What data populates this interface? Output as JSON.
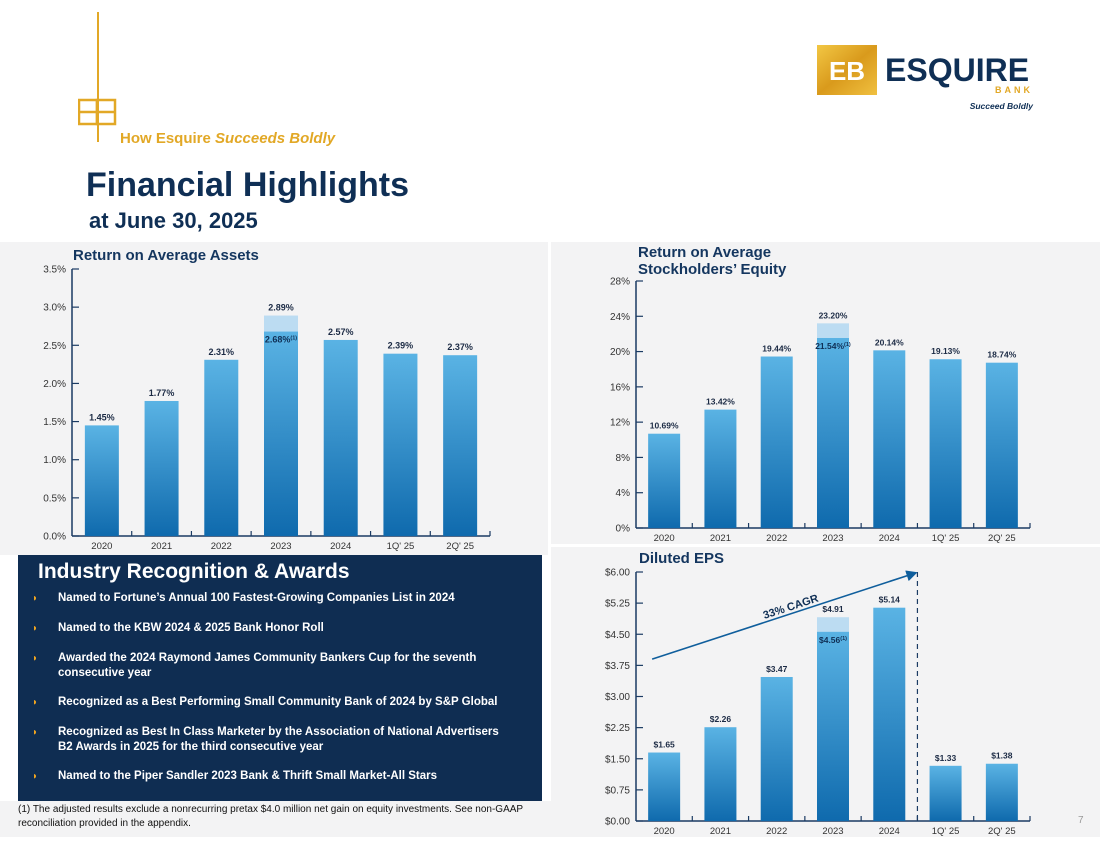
{
  "header": {
    "tagline_prefix": "How Esquire",
    "tagline_em": "Succeeds Boldly",
    "title": "Financial Highlights",
    "subtitle": "at June 30, 2025"
  },
  "logo": {
    "mark": "EB",
    "name": "ESQUIRE",
    "bank": "BANK",
    "slogan": "Succeed Boldly",
    "colors": {
      "gold": "#e2a826",
      "navy": "#0f2f55"
    }
  },
  "awards": {
    "title": "Industry Recognition & Awards",
    "items": [
      {
        "lines": [
          "Named to Fortune’s Annual 100 Fastest-Growing Companies List in 2024"
        ]
      },
      {
        "lines": [
          "Named to the KBW 2024 & 2025 Bank Honor Roll"
        ]
      },
      {
        "lines": [
          "Awarded the 2024 Raymond James Community Bankers Cup for the seventh",
          "consecutive year"
        ]
      },
      {
        "lines": [
          "Recognized as a Best Performing Small Community Bank of 2024 by S&P Global"
        ]
      },
      {
        "lines": [
          "Recognized as Best In Class Marketer by the Association of National Advertisers",
          "B2 Awards in 2025 for the third consecutive year"
        ]
      },
      {
        "lines": [
          "Named to the Piper Sandler 2023 Bank & Thrift Small Market-All Stars"
        ]
      }
    ]
  },
  "footnote": "(1) The adjusted results exclude a nonrecurring pretax $4.0 million net gain on equity investments. See non-GAAP reconciliation provided in the appendix.",
  "page_number": "7",
  "chart_data": [
    {
      "type": "bar",
      "title": "Return on Average Assets",
      "categories": [
        "2020",
        "2021",
        "2022",
        "2023",
        "2024",
        "1Q' 25",
        "2Q' 25"
      ],
      "values": [
        1.45,
        1.77,
        2.31,
        2.89,
        2.57,
        2.39,
        2.37
      ],
      "value_labels": [
        "1.45%",
        "1.77%",
        "2.31%",
        "2.89%",
        "2.57%",
        "2.39%",
        "2.37%"
      ],
      "adjusted": {
        "category": "2023",
        "value": 2.68,
        "label": "2.68%",
        "footnote_marker": "(1)"
      },
      "ylim": [
        0,
        3.5
      ],
      "yticks": [
        0,
        0.5,
        1.0,
        1.5,
        2.0,
        2.5,
        3.0,
        3.5
      ],
      "ytick_labels": [
        "0.0%",
        "0.5%",
        "1.0%",
        "1.5%",
        "2.0%",
        "2.5%",
        "3.0%",
        "3.5%"
      ],
      "grid": false
    },
    {
      "type": "bar",
      "title": "Return on Average Stockholders’ Equity",
      "categories": [
        "2020",
        "2021",
        "2022",
        "2023",
        "2024",
        "1Q' 25",
        "2Q' 25"
      ],
      "values": [
        10.69,
        13.42,
        19.44,
        23.2,
        20.14,
        19.13,
        18.74
      ],
      "value_labels": [
        "10.69%",
        "13.42%",
        "19.44%",
        "23.20%",
        "20.14%",
        "19.13%",
        "18.74%"
      ],
      "adjusted": {
        "category": "2023",
        "value": 21.54,
        "label": "21.54%",
        "footnote_marker": "(1)"
      },
      "ylim": [
        0,
        28
      ],
      "yticks": [
        0,
        4,
        8,
        12,
        16,
        20,
        24,
        28
      ],
      "ytick_labels": [
        "0%",
        "4%",
        "8%",
        "12%",
        "16%",
        "20%",
        "24%",
        "28%"
      ],
      "grid": false
    },
    {
      "type": "bar",
      "title": "Diluted EPS",
      "categories": [
        "2020",
        "2021",
        "2022",
        "2023",
        "2024",
        "1Q' 25",
        "2Q' 25"
      ],
      "values": [
        1.65,
        2.26,
        3.47,
        4.91,
        5.14,
        1.33,
        1.38
      ],
      "value_labels": [
        "$1.65",
        "$2.26",
        "$3.47",
        "$4.91",
        "$5.14",
        "$1.33",
        "$1.38"
      ],
      "adjusted": {
        "category": "2023",
        "value": 4.56,
        "label": "$4.56",
        "footnote_marker": "(1)"
      },
      "ylim": [
        0,
        6
      ],
      "yticks": [
        0,
        0.75,
        1.5,
        2.25,
        3.0,
        3.75,
        4.5,
        5.25,
        6.0
      ],
      "ytick_labels": [
        "$0.00",
        "$0.75",
        "$1.50",
        "$2.25",
        "$3.00",
        "$3.75",
        "$4.50",
        "$5.25",
        "$6.00"
      ],
      "annotation": "33% CAGR",
      "grid": false
    }
  ]
}
